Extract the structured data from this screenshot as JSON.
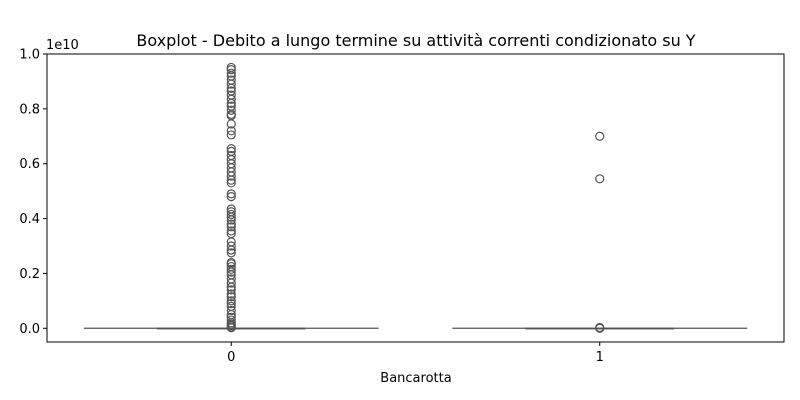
{
  "chart_data": {
    "type": "boxplot",
    "title": "Boxplot - Debito a lungo termine su attività correnti condizionato su Y",
    "xlabel": "Bancarotta",
    "ylabel": "",
    "y_offset_label": "1e10",
    "categories": [
      "0",
      "1"
    ],
    "ylim": [
      -0.05,
      1.0
    ],
    "y_ticks": [
      0.0,
      0.2,
      0.4,
      0.6,
      0.8,
      1.0
    ],
    "y_tick_labels": [
      "0.0",
      "0.2",
      "0.4",
      "0.6",
      "0.8",
      "1.0"
    ],
    "grid": false,
    "legend": "none",
    "box_color": "#555555",
    "boxes": [
      {
        "category": "0",
        "q1": 0.0,
        "median": 0.0,
        "q3": 0.0,
        "whisker_low": 0.0,
        "whisker_high": 0.0,
        "outliers": [
          0.951,
          0.943,
          0.93,
          0.92,
          0.905,
          0.89,
          0.875,
          0.865,
          0.85,
          0.835,
          0.82,
          0.81,
          0.795,
          0.78,
          0.775,
          0.745,
          0.72,
          0.705,
          0.655,
          0.645,
          0.63,
          0.615,
          0.6,
          0.585,
          0.57,
          0.555,
          0.54,
          0.53,
          0.49,
          0.48,
          0.435,
          0.425,
          0.415,
          0.405,
          0.395,
          0.38,
          0.37,
          0.355,
          0.345,
          0.315,
          0.3,
          0.285,
          0.275,
          0.24,
          0.235,
          0.225,
          0.215,
          0.205,
          0.195,
          0.18,
          0.165,
          0.15,
          0.14,
          0.125,
          0.115,
          0.1,
          0.09,
          0.08,
          0.065,
          0.05,
          0.04,
          0.03,
          0.02,
          0.015,
          0.01,
          0.005,
          0.002
        ]
      },
      {
        "category": "1",
        "q1": 0.0,
        "median": 0.0,
        "q3": 0.0,
        "whisker_low": 0.0,
        "whisker_high": 0.0,
        "outliers": [
          0.7,
          0.545,
          0.003,
          0.001,
          0.0
        ]
      }
    ]
  }
}
